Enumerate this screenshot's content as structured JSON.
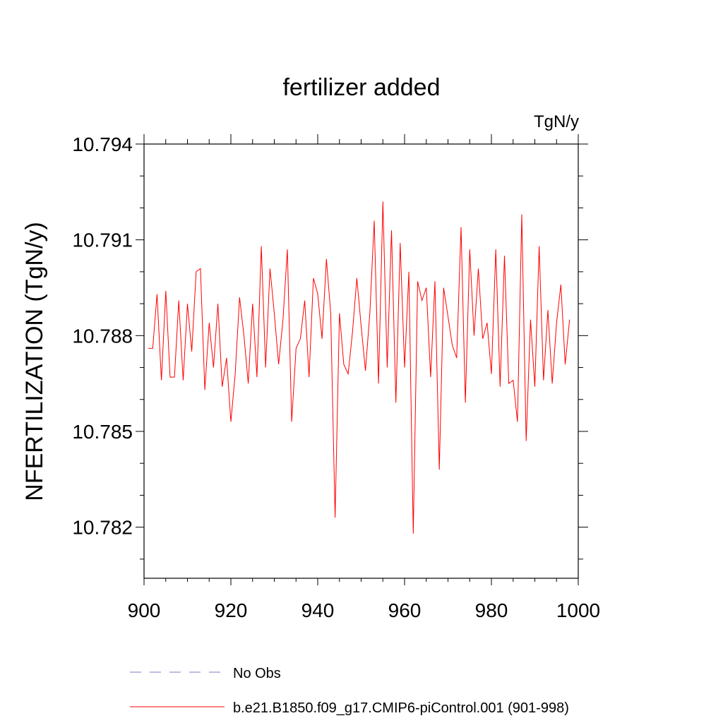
{
  "chart_data": {
    "type": "line",
    "title": "fertilizer added",
    "units": "TgN/y",
    "xlabel": "",
    "ylabel": "NFERTILIZATION  (TgN/y)",
    "xlim": [
      900,
      1000
    ],
    "ylim": [
      10.7804,
      10.794
    ],
    "x_ticks": [
      900,
      920,
      940,
      960,
      980,
      1000
    ],
    "x_tick_labels": [
      "900",
      "920",
      "940",
      "960",
      "980",
      "1000"
    ],
    "y_ticks": [
      10.782,
      10.785,
      10.788,
      10.791,
      10.794
    ],
    "y_tick_labels": [
      "10.782",
      "10.785",
      "10.788",
      "10.791",
      "10.794"
    ],
    "grid": false,
    "series": [
      {
        "name": "b.e21.B1850.f09_g17.CMIP6-piControl.001 (901-998)",
        "color": "#ff0000",
        "style": "solid",
        "x": [
          901,
          902,
          903,
          904,
          905,
          906,
          907,
          908,
          909,
          910,
          911,
          912,
          913,
          914,
          915,
          916,
          917,
          918,
          919,
          920,
          921,
          922,
          923,
          924,
          925,
          926,
          927,
          928,
          929,
          930,
          931,
          932,
          933,
          934,
          935,
          936,
          937,
          938,
          939,
          940,
          941,
          942,
          943,
          944,
          945,
          946,
          947,
          948,
          949,
          950,
          951,
          952,
          953,
          954,
          955,
          956,
          957,
          958,
          959,
          960,
          961,
          962,
          963,
          964,
          965,
          966,
          967,
          968,
          969,
          970,
          971,
          972,
          973,
          974,
          975,
          976,
          977,
          978,
          979,
          980,
          981,
          982,
          983,
          984,
          985,
          986,
          987,
          988,
          989,
          990,
          991,
          992,
          993,
          994,
          995,
          996,
          997,
          998
        ],
        "values": [
          10.7876,
          10.7876,
          10.7893,
          10.7866,
          10.7894,
          10.7867,
          10.7867,
          10.7891,
          10.7866,
          10.789,
          10.7875,
          10.79,
          10.7901,
          10.7863,
          10.7884,
          10.787,
          10.789,
          10.7864,
          10.7873,
          10.7853,
          10.7868,
          10.7892,
          10.788,
          10.7865,
          10.789,
          10.7867,
          10.7908,
          10.787,
          10.7901,
          10.7887,
          10.7871,
          10.7885,
          10.7907,
          10.7853,
          10.7876,
          10.7879,
          10.7891,
          10.7867,
          10.7898,
          10.7893,
          10.7879,
          10.7904,
          10.7887,
          10.7823,
          10.7887,
          10.7871,
          10.7868,
          10.7881,
          10.7898,
          10.7883,
          10.7869,
          10.7887,
          10.7916,
          10.7865,
          10.7922,
          10.787,
          10.7913,
          10.7859,
          10.7909,
          10.787,
          10.79,
          10.7818,
          10.7897,
          10.7891,
          10.7895,
          10.7867,
          10.7897,
          10.7838,
          10.7895,
          10.7886,
          10.7877,
          10.7873,
          10.7914,
          10.7859,
          10.7907,
          10.788,
          10.7901,
          10.7879,
          10.7884,
          10.7868,
          10.7907,
          10.7864,
          10.7905,
          10.7865,
          10.7866,
          10.7853,
          10.7918,
          10.7847,
          10.7885,
          10.7864,
          10.7908,
          10.7866,
          10.7888,
          10.7865,
          10.7884,
          10.7896,
          10.7871,
          10.7885
        ]
      }
    ],
    "legend": {
      "placement": "bottom-left",
      "entries": [
        {
          "label": "No Obs",
          "color": "#7b7bbd",
          "style": "dashed"
        },
        {
          "label": "b.e21.B1850.f09_g17.CMIP6-piControl.001 (901-998)",
          "color": "#ff0000",
          "style": "solid"
        }
      ]
    }
  }
}
